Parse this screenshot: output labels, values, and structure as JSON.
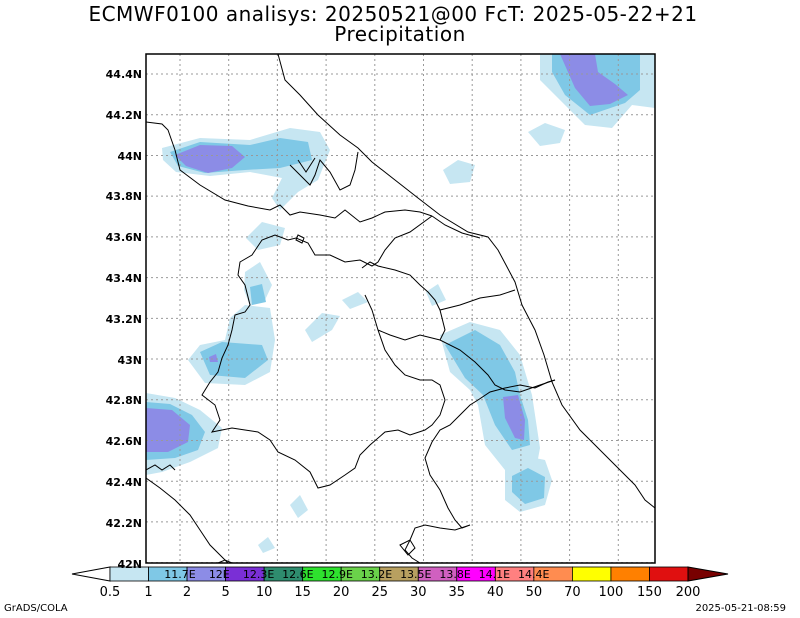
{
  "title": {
    "line1": "ECMWF0100 analisys: 20250521@00 FcT: 2025-05-22+21",
    "line2": "Precipitation"
  },
  "lat_labels": [
    "44.4N",
    "44.2N",
    "44N",
    "43.8N",
    "43.6N",
    "43.4N",
    "43.2N",
    "43N",
    "42.8N",
    "42.6N",
    "42.4N",
    "42.2N",
    "42N"
  ],
  "colorbar": {
    "labels": [
      "0.5",
      "1",
      "2",
      "5",
      "10",
      "15",
      "20",
      "25",
      "30",
      "35",
      "40",
      "50",
      "70",
      "100",
      "150",
      "200"
    ],
    "colors": [
      "#c6e6f2",
      "#7fc8e6",
      "#8c8ce6",
      "#7a2fd6",
      "#2e8c6e",
      "#2ee22e",
      "#6ad24a",
      "#b8a060",
      "#d060c0",
      "#ff00ff",
      "#ff8080",
      "#ff8c50",
      "#ffff00",
      "#ff8000",
      "#e01010",
      "#780000"
    ],
    "overlay_text": [
      "11.7E",
      "12E",
      "12.3E",
      "12.6E",
      "12.9E",
      "13.2E",
      "13.5E",
      "13.8E",
      "14.1E",
      "14.4E"
    ]
  },
  "footer": {
    "left": "GrADS/COLA",
    "right": "2025-05-21-08:59"
  }
}
